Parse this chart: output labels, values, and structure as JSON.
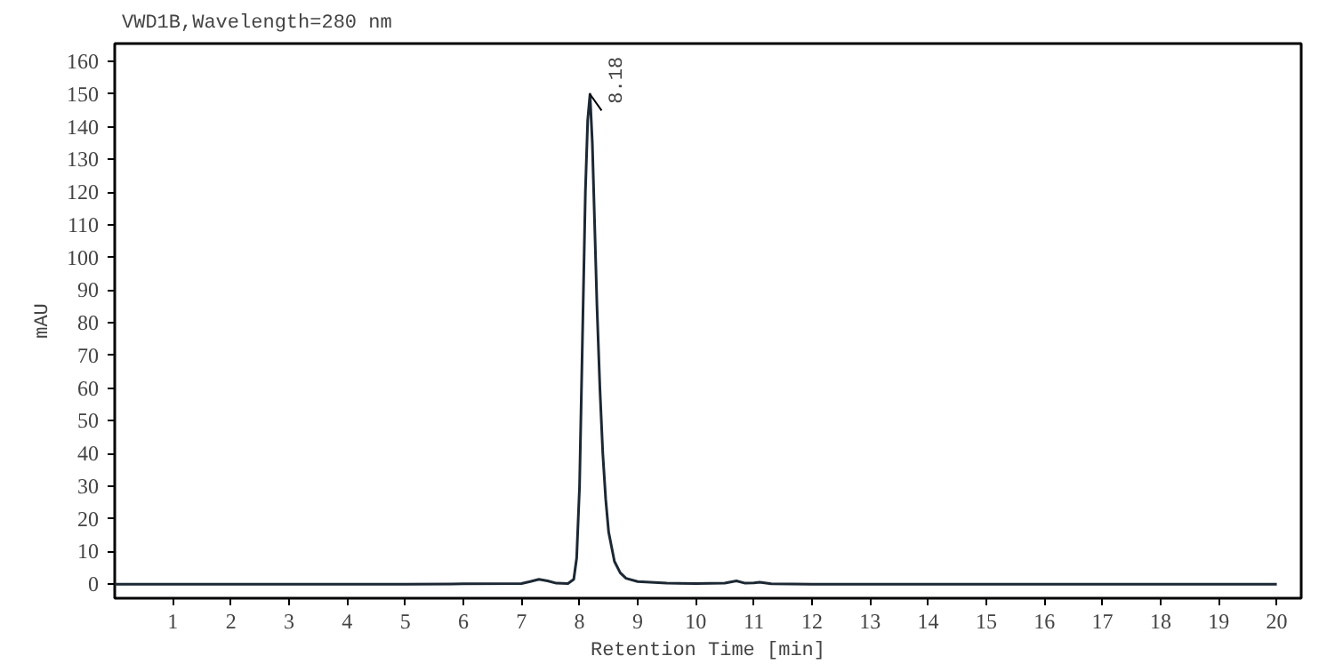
{
  "chart_data": {
    "type": "line",
    "title": "VWD1B,Wavelength=280 nm",
    "xlabel": "Retention Time [min]",
    "ylabel": "mAU",
    "x": [
      0,
      2,
      4,
      5,
      6,
      7,
      7.15,
      7.3,
      7.45,
      7.6,
      7.8,
      7.9,
      7.95,
      8.0,
      8.05,
      8.1,
      8.14,
      8.18,
      8.22,
      8.26,
      8.3,
      8.35,
      8.4,
      8.45,
      8.5,
      8.6,
      8.7,
      8.8,
      9.0,
      9.5,
      10.0,
      10.5,
      10.7,
      10.85,
      11.0,
      11.1,
      11.3,
      12,
      14,
      16,
      18,
      20
    ],
    "series": [
      {
        "color": "#1c2833",
        "values": [
          0,
          0,
          0,
          0,
          0.1,
          0.2,
          0.8,
          1.5,
          1.0,
          0.3,
          0.2,
          1.5,
          8,
          30,
          75,
          120,
          142,
          150,
          135,
          110,
          85,
          60,
          40,
          26,
          16,
          7,
          3.5,
          1.8,
          0.8,
          0.3,
          0.2,
          0.3,
          1.0,
          0.3,
          0.4,
          0.6,
          0.1,
          0,
          0,
          0,
          0,
          0
        ]
      }
    ],
    "xlim": [
      0,
      20.42
    ],
    "ylim": [
      -4.3,
      165.5
    ],
    "xticks": [
      1,
      2,
      3,
      4,
      5,
      6,
      7,
      8,
      9,
      10,
      11,
      12,
      13,
      14,
      15,
      16,
      17,
      18,
      19,
      20
    ],
    "yticks": [
      0,
      10,
      20,
      30,
      40,
      50,
      60,
      70,
      80,
      90,
      100,
      110,
      120,
      130,
      140,
      150,
      160
    ],
    "annotations": [
      {
        "text": "8.18",
        "x": 8.18,
        "y": 150
      }
    ],
    "grid": false,
    "marker": "none",
    "line_style": "solid"
  }
}
